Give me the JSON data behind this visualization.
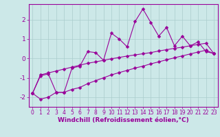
{
  "xlabel": "Windchill (Refroidissement éolien,°C)",
  "background_color": "#cce8e8",
  "line_color": "#990099",
  "grid_color": "#aacccc",
  "x_values": [
    0,
    1,
    2,
    3,
    4,
    5,
    6,
    7,
    8,
    9,
    10,
    11,
    12,
    13,
    14,
    15,
    16,
    17,
    18,
    19,
    20,
    21,
    22,
    23
  ],
  "line1_y": [
    -1.8,
    -0.9,
    -0.8,
    -1.75,
    -1.75,
    -0.5,
    -0.4,
    0.35,
    0.3,
    -0.1,
    1.3,
    1.0,
    0.6,
    1.9,
    2.55,
    1.85,
    1.15,
    1.6,
    0.65,
    1.15,
    0.65,
    0.85,
    0.35,
    0.25
  ],
  "line2_y": [
    -1.8,
    -0.85,
    -0.75,
    -0.65,
    -0.55,
    -0.45,
    -0.35,
    -0.25,
    -0.18,
    -0.1,
    -0.02,
    0.05,
    0.12,
    0.18,
    0.24,
    0.3,
    0.38,
    0.45,
    0.52,
    0.58,
    0.65,
    0.72,
    0.78,
    0.25
  ],
  "line3_y": [
    -1.8,
    -2.1,
    -2.0,
    -1.75,
    -1.75,
    -1.6,
    -1.5,
    -1.3,
    -1.15,
    -1.0,
    -0.85,
    -0.73,
    -0.62,
    -0.5,
    -0.4,
    -0.28,
    -0.18,
    -0.07,
    0.03,
    0.13,
    0.23,
    0.33,
    0.42,
    0.25
  ],
  "ylim": [
    -2.5,
    2.8
  ],
  "yticks": [
    -2,
    -1,
    0,
    1,
    2
  ],
  "xtick_labels": [
    "0",
    "1",
    "2",
    "3",
    "4",
    "5",
    "6",
    "7",
    "8",
    "9",
    "10",
    "11",
    "12",
    "13",
    "14",
    "15",
    "16",
    "17",
    "18",
    "19",
    "20",
    "21",
    "22",
    "23"
  ],
  "font_size": 5.5,
  "xlabel_font_size": 6.5,
  "marker": "D",
  "marker_size": 2.5,
  "line_width": 0.8
}
